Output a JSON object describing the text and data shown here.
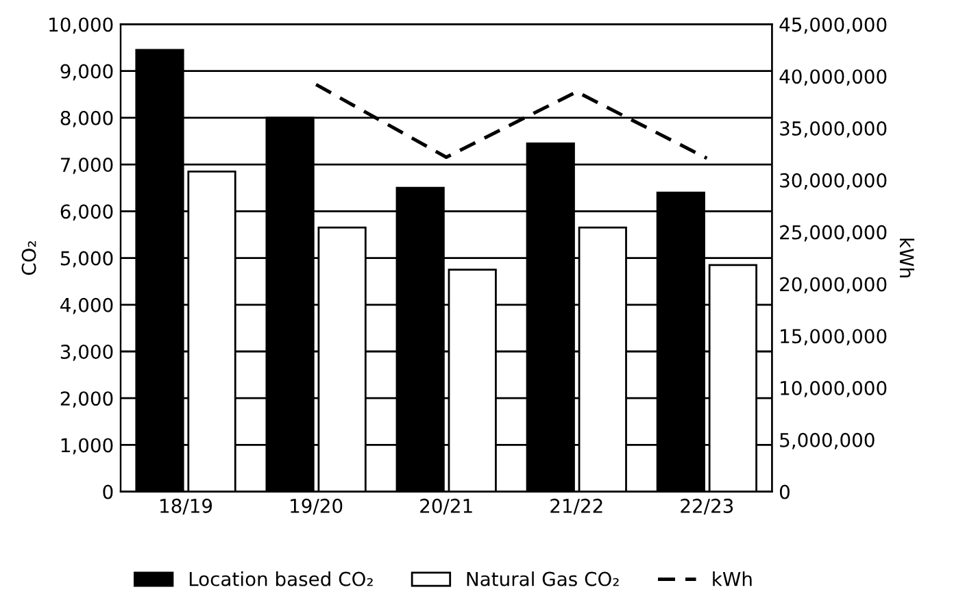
{
  "chart_data": {
    "type": "bar",
    "categories": [
      "18/19",
      "19/20",
      "20/21",
      "21/22",
      "22/23"
    ],
    "series": [
      {
        "name": "Location based CO₂",
        "color": "#000000",
        "values": [
          9450,
          8000,
          6500,
          7450,
          6400
        ]
      },
      {
        "name": "Natural Gas CO₂",
        "color": "#ffffff",
        "values": [
          6850,
          5650,
          4750,
          5650,
          4850
        ]
      },
      {
        "name": "kWh",
        "type": "line",
        "axis": "y2",
        "color": "#000000",
        "line_style": "dashed",
        "values": [
          null,
          39200000,
          32200000,
          38500000,
          32100000
        ]
      }
    ],
    "ylabel": "CO₂",
    "y2label": "kWh",
    "ylim": [
      0,
      10000
    ],
    "yticks": [
      0,
      {
        "value": 1000,
        "label": "1,000"
      },
      {
        "value": 2000,
        "label": "2,000"
      },
      {
        "value": 3000,
        "label": "3,000"
      },
      {
        "value": 4000,
        "label": "4,000"
      },
      {
        "value": 5000,
        "label": "5,000"
      },
      {
        "value": 6000,
        "label": "6,000"
      },
      {
        "value": 7000,
        "label": "7,000"
      },
      {
        "value": 8000,
        "label": "8,000"
      },
      {
        "value": 9000,
        "label": "9,000"
      },
      {
        "value": 10000,
        "label": "10,000"
      }
    ],
    "y2lim": [
      0,
      45000000
    ],
    "y2ticks": [
      0,
      {
        "value": 5000000,
        "label": "5,000,000"
      },
      {
        "value": 10000000,
        "label": "10,000,000"
      },
      {
        "value": 15000000,
        "label": "15,000,000"
      },
      {
        "value": 20000000,
        "label": "20,000,000"
      },
      {
        "value": 25000000,
        "label": "25,000,000"
      },
      {
        "value": 30000000,
        "label": "30,000,000"
      },
      {
        "value": 35000000,
        "label": "35,000,000"
      },
      {
        "value": 40000000,
        "label": "40,000,000"
      },
      {
        "value": 45000000,
        "label": "45,000,000"
      }
    ],
    "grid": "y",
    "legend": "bottom"
  }
}
